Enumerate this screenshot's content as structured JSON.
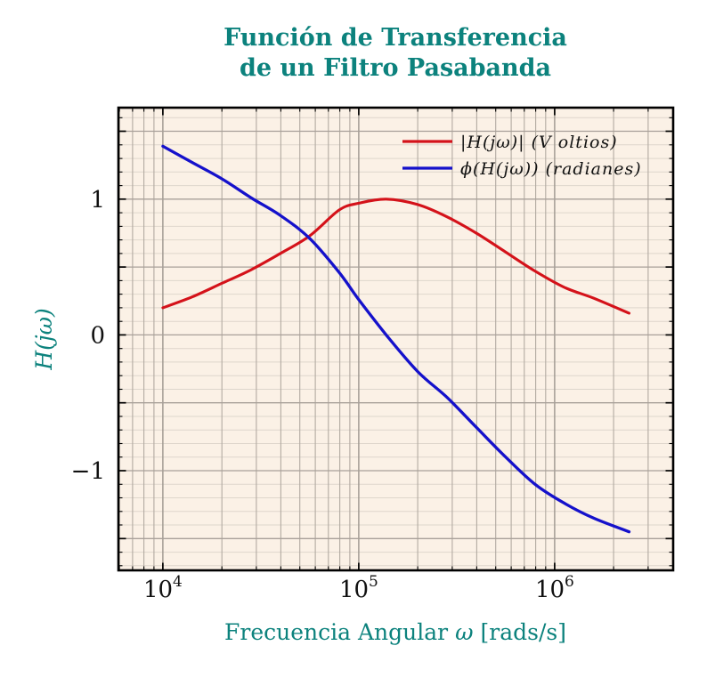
{
  "title": {
    "line1": "Función de Transferencia",
    "line2": "de un Filtro Pasabanda"
  },
  "colors": {
    "accent_teal": "#0c827d",
    "magnitude_red": "#d4121a",
    "phase_blue": "#1511cb",
    "plot_background": "#fbf1e6",
    "grid_major": "#a8a099",
    "grid_minor": "#ded6cc",
    "frame": "#000000"
  },
  "chart_data": {
    "type": "line",
    "title": "Función de Transferencia de un Filtro Pasabanda",
    "xlabel_parts": {
      "text": "Frecuencia Angular",
      "omega": "ω",
      "units": "[rads/s]"
    },
    "ylabel": "H(jω)",
    "x_axis": {
      "scale": "log",
      "lim_log": [
        3.773,
        6.605
      ],
      "ticks": [
        {
          "base": "10",
          "exp": "4"
        },
        {
          "base": "10",
          "exp": "5"
        },
        {
          "base": "10",
          "exp": "6"
        }
      ]
    },
    "y_axis": {
      "lim": [
        -1.734,
        1.674
      ],
      "ticks": [
        {
          "value": 1,
          "label": "1"
        },
        {
          "value": 0,
          "label": "0"
        },
        {
          "value": -1,
          "label": "−1"
        }
      ],
      "grid_major_step": 0.5,
      "grid_minor_step": 0.1
    },
    "legend_position": "top-right-inside",
    "grid": "both",
    "series": [
      {
        "name": "|H(jω)| (V oltios)",
        "color": "#d4121a",
        "x": [
          10000,
          14100,
          20000,
          28200,
          39800,
          56200,
          79400,
          100000,
          138000,
          200000,
          282000,
          398000,
          562000,
          794000,
          1122000,
          1585000,
          2400000
        ],
        "y": [
          0.2,
          0.28,
          0.38,
          0.48,
          0.6,
          0.73,
          0.92,
          0.97,
          1.0,
          0.96,
          0.87,
          0.75,
          0.61,
          0.47,
          0.35,
          0.27,
          0.16
        ]
      },
      {
        "name": "ϕ(H(jω)) (radianes)",
        "color": "#1511cb",
        "x": [
          10000,
          14100,
          20000,
          28200,
          39800,
          56200,
          79400,
          100000,
          138000,
          200000,
          282000,
          398000,
          562000,
          794000,
          1122000,
          1585000,
          2400000
        ],
        "y": [
          1.39,
          1.27,
          1.15,
          1.01,
          0.88,
          0.71,
          0.46,
          0.26,
          0.0,
          -0.27,
          -0.46,
          -0.68,
          -0.9,
          -1.1,
          -1.24,
          -1.35,
          -1.45
        ]
      }
    ]
  }
}
